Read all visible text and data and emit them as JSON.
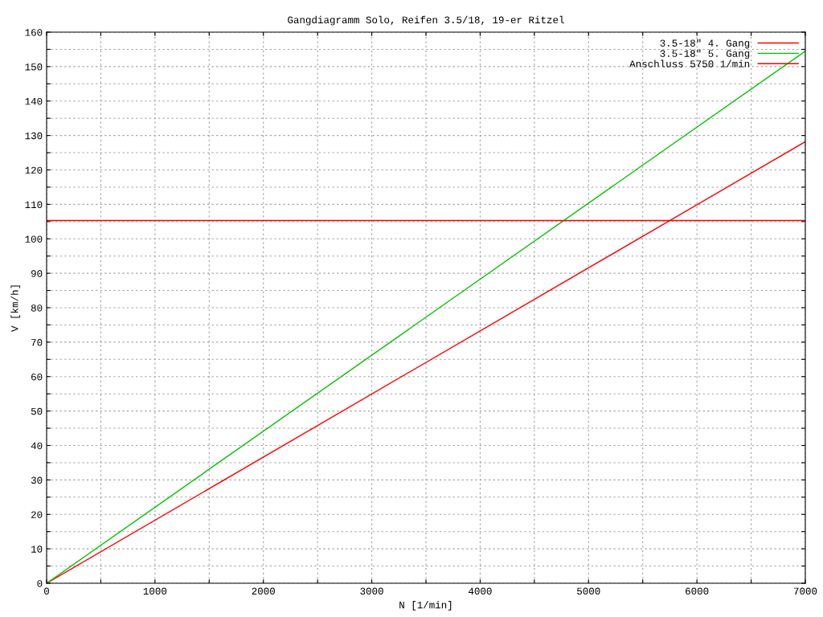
{
  "chart_data": {
    "type": "line",
    "title": "Gangdiagramm Solo, Reifen 3.5/18, 19-er Ritzel",
    "xlabel": "N [1/min]",
    "ylabel": "V [km/h]",
    "x": [
      0,
      7000
    ],
    "series": [
      {
        "name": "3.5-18\" 4. Gang",
        "color": "#ff0000",
        "values": [
          0,
          128.2
        ]
      },
      {
        "name": "3.5-18\" 5. Gang",
        "color": "#00c000",
        "values": [
          0,
          154.5
        ]
      }
    ],
    "ref_lines": [
      {
        "axis": "y",
        "value": 105.3,
        "label": "Anschluss 5750 1/min",
        "color": "#ff0000",
        "line_style": "solid"
      }
    ],
    "xlim": [
      0,
      7000
    ],
    "ylim": [
      0,
      160
    ],
    "xticks": [
      0,
      {
        "value": 500,
        "label": null
      },
      1000,
      {
        "value": 1500,
        "label": null
      },
      2000,
      {
        "value": 2500,
        "label": null
      },
      3000,
      {
        "value": 3500,
        "label": null
      },
      4000,
      {
        "value": 4500,
        "label": null
      },
      5000,
      {
        "value": 5500,
        "label": null
      },
      6000,
      {
        "value": 6500,
        "label": null
      },
      7000
    ],
    "yticks": [
      0,
      {
        "value": 5,
        "label": null
      },
      10,
      {
        "value": 15,
        "label": null
      },
      20,
      {
        "value": 25,
        "label": null
      },
      30,
      {
        "value": 35,
        "label": null
      },
      40,
      {
        "value": 45,
        "label": null
      },
      50,
      {
        "value": 55,
        "label": null
      },
      60,
      {
        "value": 65,
        "label": null
      },
      70,
      {
        "value": 75,
        "label": null
      },
      80,
      {
        "value": 85,
        "label": null
      },
      90,
      {
        "value": 95,
        "label": null
      },
      100,
      {
        "value": 105,
        "label": null
      },
      110,
      {
        "value": 115,
        "label": null
      },
      120,
      {
        "value": 125,
        "label": null
      },
      130,
      {
        "value": 135,
        "label": null
      },
      140,
      {
        "value": 145,
        "label": null
      },
      150,
      {
        "value": 155,
        "label": null
      },
      160
    ],
    "grid": true,
    "legend": "top right",
    "marker": "none",
    "line_style": "solid"
  }
}
